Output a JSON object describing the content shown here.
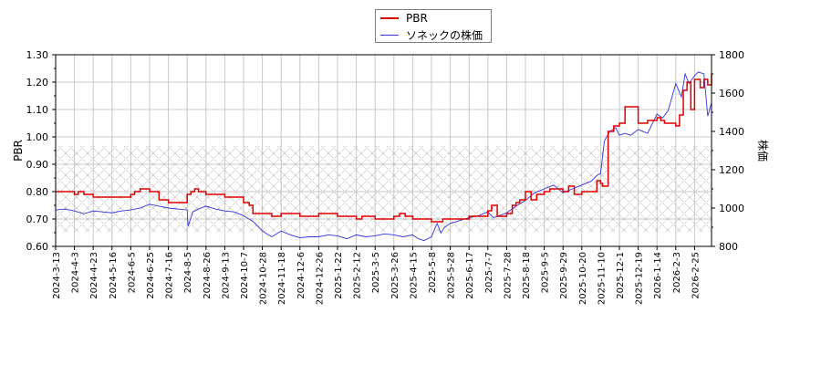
{
  "legend": {
    "items": [
      {
        "label": "PBR",
        "color": "#dd0000"
      },
      {
        "label": "ソネックの株価",
        "color": "#3333dd"
      }
    ]
  },
  "axes": {
    "left_label": "PBR",
    "right_label": "株価"
  },
  "chart_data": {
    "type": "line",
    "title": "",
    "xlabel": "",
    "ylabel": "PBR",
    "ylabel_right": "株価",
    "ylim": [
      0.6,
      1.3
    ],
    "ylim_right": [
      800,
      1800
    ],
    "grid": true,
    "legend_position": "top-center",
    "y_ticks": [
      "0.60",
      "0.70",
      "0.80",
      "0.90",
      "1.00",
      "1.10",
      "1.20",
      "1.30"
    ],
    "y_ticks_right": [
      "800",
      "1000",
      "1200",
      "1400",
      "1600",
      "1800"
    ],
    "x_ticks": [
      "2024-3-13",
      "2024-4-3",
      "2024-4-23",
      "2024-5-16",
      "2024-6-5",
      "2024-6-25",
      "2024-7-16",
      "2024-8-5",
      "2024-8-26",
      "2024-9-13",
      "2024-10-7",
      "2024-10-28",
      "2024-11-18",
      "2024-12-6",
      "2024-12-26",
      "2025-1-22",
      "2025-2-12",
      "2025-3-5",
      "2025-3-26",
      "2025-4-15",
      "2025-5-8",
      "2025-5-28",
      "2025-6-17",
      "2025-7-7",
      "2025-7-28",
      "2025-8-18",
      "2025-9-5",
      "2025-9-29",
      "2025-10-20",
      "2025-11-10",
      "2025-12-1",
      "2025-12-19",
      "2026-1-14",
      "2026-2-3",
      "2026-2-25"
    ],
    "shaded_band": {
      "pbr_from": 0.65,
      "pbr_to": 0.967,
      "pattern": "crosshatch"
    },
    "series": [
      {
        "name": "PBR",
        "color": "#dd0000",
        "axis": "left",
        "x_index": [
          0,
          0.5,
          1,
          1.2,
          1.5,
          2,
          2.3,
          2.6,
          3,
          4,
          4.2,
          4.5,
          5,
          5.3,
          5.5,
          6,
          7,
          7.2,
          7.4,
          7.6,
          8,
          8.4,
          8.6,
          9,
          10,
          10.3,
          10.5,
          11,
          11.2,
          11.5,
          12,
          13,
          13.5,
          14,
          15,
          15.5,
          16,
          16.3,
          16.6,
          17,
          17.5,
          18,
          18.3,
          18.6,
          19,
          20,
          20.3,
          20.6,
          21,
          22,
          23,
          23.2,
          23.5,
          24,
          24.3,
          24.5,
          24.7,
          25,
          25.3,
          25.6,
          26,
          26.3,
          26.6,
          27,
          27.3,
          27.6,
          28,
          28.6,
          28.8,
          29,
          29.1,
          29.4,
          29.7,
          30,
          30.3,
          31,
          31.5,
          32,
          32.2,
          32.4,
          32.6,
          33,
          33.2,
          33.4,
          33.6,
          33.8,
          34,
          34.3,
          34.5,
          34.7,
          35
        ],
        "values": [
          0.8,
          0.8,
          0.79,
          0.8,
          0.79,
          0.78,
          0.78,
          0.78,
          0.78,
          0.79,
          0.8,
          0.81,
          0.8,
          0.8,
          0.77,
          0.76,
          0.79,
          0.8,
          0.81,
          0.8,
          0.79,
          0.79,
          0.79,
          0.78,
          0.76,
          0.75,
          0.72,
          0.72,
          0.72,
          0.71,
          0.72,
          0.71,
          0.71,
          0.72,
          0.71,
          0.71,
          0.7,
          0.71,
          0.71,
          0.7,
          0.7,
          0.71,
          0.72,
          0.71,
          0.7,
          0.69,
          0.69,
          0.7,
          0.7,
          0.71,
          0.73,
          0.75,
          0.71,
          0.72,
          0.75,
          0.76,
          0.77,
          0.8,
          0.77,
          0.79,
          0.8,
          0.81,
          0.81,
          0.8,
          0.82,
          0.79,
          0.8,
          0.8,
          0.84,
          0.83,
          0.82,
          1.02,
          1.04,
          1.05,
          1.11,
          1.05,
          1.06,
          1.07,
          1.06,
          1.05,
          1.05,
          1.04,
          1.08,
          1.17,
          1.2,
          1.1,
          1.21,
          1.18,
          1.21,
          1.19,
          1.23
        ]
      },
      {
        "name": "ソネックの株価",
        "color": "#3333dd",
        "axis": "right",
        "x_index": [
          0,
          0.5,
          1,
          1.5,
          2,
          2.5,
          3,
          3.5,
          4,
          4.5,
          5,
          5.5,
          6,
          6.5,
          7,
          7.05,
          7.3,
          7.6,
          8,
          8.5,
          9,
          9.5,
          10,
          10.5,
          11,
          11.5,
          12,
          12.5,
          13,
          13.5,
          14,
          14.5,
          15,
          15.5,
          16,
          16.5,
          17,
          17.5,
          18,
          18.5,
          19,
          19.3,
          19.6,
          20,
          20.3,
          20.5,
          20.7,
          21,
          21.5,
          22,
          22.5,
          23,
          23.3,
          23.6,
          24,
          24.5,
          25,
          25.5,
          26,
          26.5,
          27,
          27.5,
          28,
          28.5,
          28.8,
          29,
          29.2,
          29.5,
          29.8,
          30,
          30.3,
          30.6,
          31,
          31.5,
          32,
          32.3,
          32.6,
          33,
          33.3,
          33.5,
          33.7,
          34,
          34.2,
          34.5,
          34.7,
          35
        ],
        "values": [
          990,
          995,
          985,
          970,
          985,
          980,
          975,
          985,
          990,
          1000,
          1020,
          1010,
          1000,
          995,
          990,
          905,
          980,
          995,
          1010,
          995,
          985,
          980,
          960,
          930,
          880,
          850,
          880,
          860,
          845,
          850,
          850,
          860,
          855,
          840,
          860,
          850,
          855,
          865,
          860,
          850,
          860,
          840,
          830,
          850,
          920,
          870,
          900,
          920,
          935,
          950,
          960,
          980,
          950,
          960,
          975,
          1010,
          1040,
          1080,
          1100,
          1120,
          1080,
          1100,
          1120,
          1140,
          1170,
          1180,
          1350,
          1400,
          1420,
          1380,
          1390,
          1380,
          1410,
          1390,
          1490,
          1470,
          1510,
          1650,
          1580,
          1700,
          1650,
          1690,
          1710,
          1700,
          1480,
          1550
        ]
      }
    ]
  }
}
